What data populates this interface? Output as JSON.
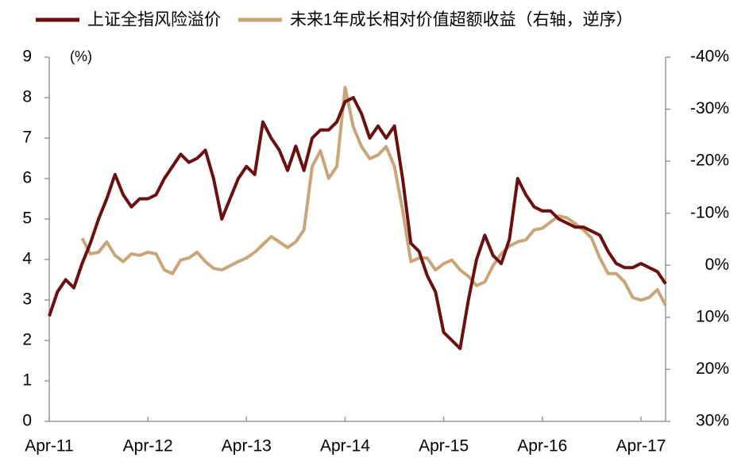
{
  "chart_data": {
    "type": "line",
    "categories": [
      "Apr-11",
      null,
      null,
      null,
      null,
      null,
      null,
      null,
      null,
      null,
      null,
      null,
      "Apr-12",
      null,
      null,
      null,
      null,
      null,
      null,
      null,
      null,
      null,
      null,
      null,
      "Apr-13",
      null,
      null,
      null,
      null,
      null,
      null,
      null,
      null,
      null,
      null,
      null,
      "Apr-14",
      null,
      null,
      null,
      null,
      null,
      null,
      null,
      null,
      null,
      null,
      null,
      "Apr-15",
      null,
      null,
      null,
      null,
      null,
      null,
      null,
      null,
      null,
      null,
      null,
      "Apr-16",
      null,
      null,
      null,
      null,
      null,
      null,
      null,
      null,
      null,
      null,
      null,
      "Apr-17",
      null,
      null,
      null
    ],
    "series": [
      {
        "name": "上证全指风险溢价",
        "color": "#6b0f0f",
        "values": [
          2.6,
          3.2,
          3.5,
          3.3,
          3.9,
          4.4,
          5.0,
          5.5,
          6.1,
          5.6,
          5.3,
          5.5,
          5.5,
          5.6,
          6.0,
          6.3,
          6.6,
          6.4,
          6.5,
          6.7,
          6.0,
          5.0,
          5.5,
          6.0,
          6.3,
          6.1,
          7.4,
          7.0,
          6.7,
          6.2,
          6.8,
          6.2,
          7.0,
          7.2,
          7.2,
          7.4,
          7.9,
          8.0,
          7.6,
          7.0,
          7.3,
          7.0,
          7.3,
          6.0,
          4.4,
          4.2,
          3.6,
          3.2,
          2.2,
          2.0,
          1.8,
          3.0,
          4.0,
          4.6,
          4.1,
          3.9,
          4.5,
          6.0,
          5.6,
          5.3,
          5.2,
          5.2,
          5.0,
          4.9,
          4.8,
          4.8,
          4.7,
          4.6,
          4.2,
          3.9,
          3.8,
          3.8,
          3.9,
          3.8,
          3.7,
          3.4
        ]
      },
      {
        "name": "未来1年成长相对价值超额收益（右轴，逆序）",
        "color": "#c9a57a",
        "axis": "y2",
        "values": [
          null,
          null,
          null,
          null,
          -5.2,
          -2.2,
          -2.5,
          -4.5,
          -1.9,
          -0.7,
          -2.2,
          -1.9,
          -2.5,
          -2.2,
          0.9,
          1.6,
          -1.0,
          -1.4,
          -2.5,
          -0.7,
          0.6,
          0.9,
          0.1,
          -0.7,
          -1.4,
          -2.5,
          -4.0,
          -5.5,
          -4.5,
          -3.4,
          -4.5,
          -6.8,
          -19.0,
          -22.0,
          -16.7,
          -19.0,
          -34.2,
          -26.6,
          -22.8,
          -20.5,
          -21.2,
          -22.8,
          -19.0,
          -10.6,
          -0.7,
          -1.4,
          -1.4,
          0.9,
          -0.3,
          -1.0,
          0.9,
          2.1,
          3.9,
          3.2,
          0.1,
          -2.2,
          -3.7,
          -4.5,
          -4.9,
          -6.8,
          -7.1,
          -8.3,
          -9.5,
          -9.1,
          -8.0,
          -6.8,
          -5.2,
          -1.4,
          1.6,
          1.6,
          3.2,
          6.2,
          6.7,
          6.2,
          4.7,
          7.7
        ]
      }
    ],
    "ylim": [
      0,
      9
    ],
    "yticks": [
      0,
      1,
      2,
      3,
      4,
      5,
      6,
      7,
      8,
      9
    ],
    "y2lim": [
      30,
      -40
    ],
    "y2ticks": [
      {
        "value": -40,
        "label": "-40%"
      },
      {
        "value": -30,
        "label": "-30%"
      },
      {
        "value": -20,
        "label": "-20%"
      },
      {
        "value": -10,
        "label": "-10%"
      },
      {
        "value": 0,
        "label": "0%"
      },
      {
        "value": 10,
        "label": "10%"
      },
      {
        "value": 20,
        "label": "20%"
      },
      {
        "value": 30,
        "label": "30%"
      }
    ],
    "y_unit_label": "(%)",
    "grid": false,
    "legend": "top"
  }
}
